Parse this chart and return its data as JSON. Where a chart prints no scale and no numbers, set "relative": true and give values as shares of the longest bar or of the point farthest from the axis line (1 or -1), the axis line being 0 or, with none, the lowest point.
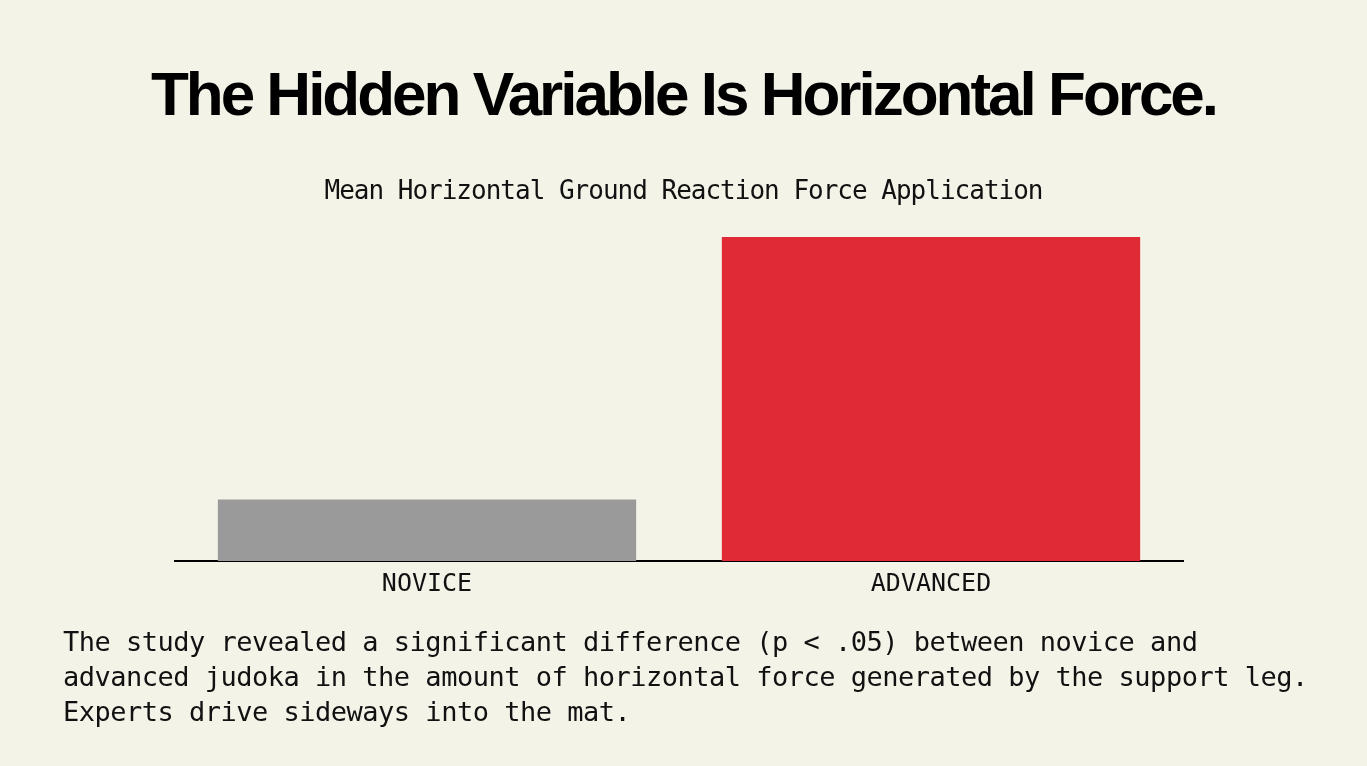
{
  "chart_data": {
    "type": "bar",
    "title": "The Hidden Variable Is Horizontal Force.",
    "subtitle": "Mean Horizontal Ground Reaction Force Application",
    "categories": [
      "NOVICE",
      "ADVANCED"
    ],
    "values": [
      0.19,
      1
    ],
    "colors": [
      "#9a9a9a",
      "#e02a36"
    ],
    "relative": true,
    "grid": false,
    "legend": false,
    "annotations": [
      "The study revealed a significant difference (p < .05) between novice and advanced judoka in the amount of horizontal force generated by the support leg. Experts drive sideways into the mat."
    ]
  }
}
